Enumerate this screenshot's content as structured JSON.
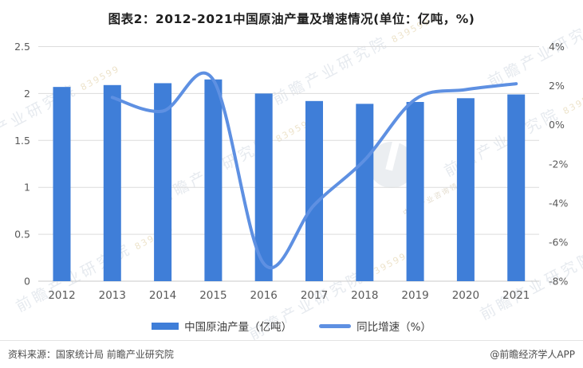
{
  "title": "图表2：2012-2021中国原油产量及增速情况(单位：亿吨，%)",
  "chart_data": {
    "type": "combo",
    "categories": [
      "2012",
      "2013",
      "2014",
      "2015",
      "2016",
      "2017",
      "2018",
      "2019",
      "2020",
      "2021"
    ],
    "series": [
      {
        "name": "中国原油产量（亿吨）",
        "type": "bar",
        "axis": "left",
        "values": [
          2.07,
          2.09,
          2.11,
          2.15,
          2.0,
          1.92,
          1.89,
          1.91,
          1.95,
          1.99
        ]
      },
      {
        "name": "同比增速（%）",
        "type": "line",
        "axis": "right",
        "values": [
          null,
          1.4,
          0.7,
          2.3,
          -7.1,
          -4.1,
          -1.8,
          1.3,
          1.8,
          2.1
        ]
      }
    ],
    "left_axis": {
      "min": 0,
      "max": 2.5,
      "step": 0.5,
      "tick_labels": [
        "2.5",
        "2",
        "1.5",
        "1",
        "0.5",
        "0"
      ]
    },
    "right_axis": {
      "min": -8,
      "max": 4,
      "step": 2,
      "tick_labels": [
        "4%",
        "2%",
        "0%",
        "-2%",
        "-4%",
        "-6%",
        "-8%"
      ]
    },
    "grid": true,
    "legend_position": "bottom",
    "smooth_line": true
  },
  "legend": {
    "bar_label": "中国原油产量（亿吨）",
    "line_label": "同比增速（%）"
  },
  "footer": {
    "source": "资料来源：国家统计局 前瞻产业研究院",
    "credit": "@前瞻经济学人APP"
  },
  "watermark": {
    "text": "前瞻产业研究院",
    "code": "839599",
    "slogan": "中国产业咨询领导者"
  },
  "colors": {
    "bar": "#3f7ed8",
    "line": "#5e90e2",
    "grid": "#dcdcdc",
    "baseline": "#c9c9c9",
    "axis_text": "#595959",
    "title_text": "#1f1f1f"
  }
}
